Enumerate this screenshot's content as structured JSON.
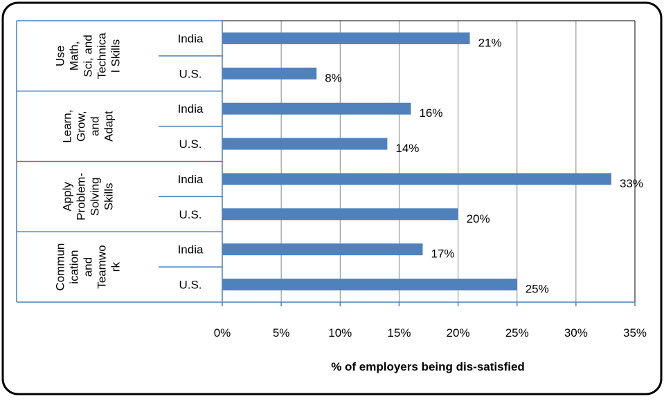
{
  "chart_data": {
    "type": "bar",
    "orientation": "horizontal",
    "title": "",
    "xlabel": "% of employers being dis-satisfied",
    "ylabel": "",
    "xlim": [
      0,
      35
    ],
    "xticks": [
      "0%",
      "5%",
      "10%",
      "15%",
      "20%",
      "25%",
      "30%",
      "35%"
    ],
    "grid": true,
    "legend": "none",
    "bar_color": "#4f81bd",
    "groups": [
      {
        "label_lines": [
          "Use",
          "Math,",
          "Sci, and",
          "Technica",
          "l Skills"
        ],
        "bars": [
          {
            "category": "India",
            "value": 21,
            "label": "21%"
          },
          {
            "category": "U.S.",
            "value": 8,
            "label": "8%"
          }
        ]
      },
      {
        "label_lines": [
          "Learn,",
          "Grow,",
          "and",
          "Adapt"
        ],
        "bars": [
          {
            "category": "India",
            "value": 16,
            "label": "16%"
          },
          {
            "category": "U.S.",
            "value": 14,
            "label": "14%"
          }
        ]
      },
      {
        "label_lines": [
          "Apply",
          "Problem-",
          "Solving",
          "Skills"
        ],
        "bars": [
          {
            "category": "India",
            "value": 33,
            "label": "33%"
          },
          {
            "category": "U.S.",
            "value": 20,
            "label": "20%"
          }
        ]
      },
      {
        "label_lines": [
          "Commun",
          "ication",
          "and",
          "Teamwo",
          "rk"
        ],
        "bars": [
          {
            "category": "India",
            "value": 17,
            "label": "17%"
          },
          {
            "category": "U.S.",
            "value": 25,
            "label": "25%"
          }
        ]
      }
    ]
  }
}
